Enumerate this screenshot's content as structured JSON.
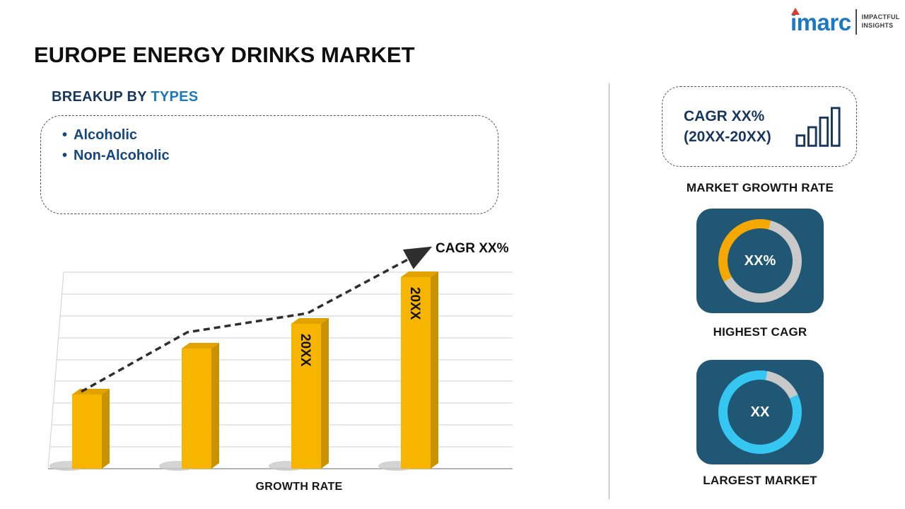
{
  "logo": {
    "brand": "imarc",
    "tagline1": "IMPACTFUL",
    "tagline2": "INSIGHTS"
  },
  "title": "EUROPE ENERGY DRINKS MARKET",
  "breakup": {
    "heading": "BREAKUP BY",
    "heading_highlight": "TYPES",
    "items": [
      "Alcoholic",
      "Non-Alcoholic"
    ]
  },
  "chart_data": {
    "type": "bar",
    "title": "",
    "xlabel": "GROWTH RATE",
    "ylabel": "",
    "categories": [
      "",
      "",
      "20XX",
      "20XX"
    ],
    "bar_labels": [
      "",
      "",
      "20XX",
      "20XX"
    ],
    "values": [
      105,
      170,
      205,
      271
    ],
    "values_note": "relative bar heights; no numeric axis shown",
    "ylim": [
      0,
      300
    ],
    "gridlines": true,
    "bar_color": "#F7B500",
    "trend_line": {
      "style": "dashed-arrow-increasing",
      "annotation": "CAGR XX%"
    }
  },
  "right_panel": {
    "cagr_line1": "CAGR XX%",
    "cagr_line2": "(20XX-20XX)",
    "market_growth_label": "MARKET GROWTH RATE",
    "highest_cagr_value": "XX%",
    "highest_cagr_label": "HIGHEST CAGR",
    "largest_market_value": "XX",
    "largest_market_label": "LARGEST MARKET"
  },
  "colors": {
    "accent_blue": "#1b78c2",
    "navy_text": "#17375e",
    "bullet_blue": "#16477c",
    "card_navy": "#1f5774",
    "bar_gold": "#F7B500",
    "donut_gold": "#F5A800",
    "donut_cyan": "#35C7F2",
    "donut_gray": "#C9C9C9",
    "logo_red": "#E03A2F"
  }
}
